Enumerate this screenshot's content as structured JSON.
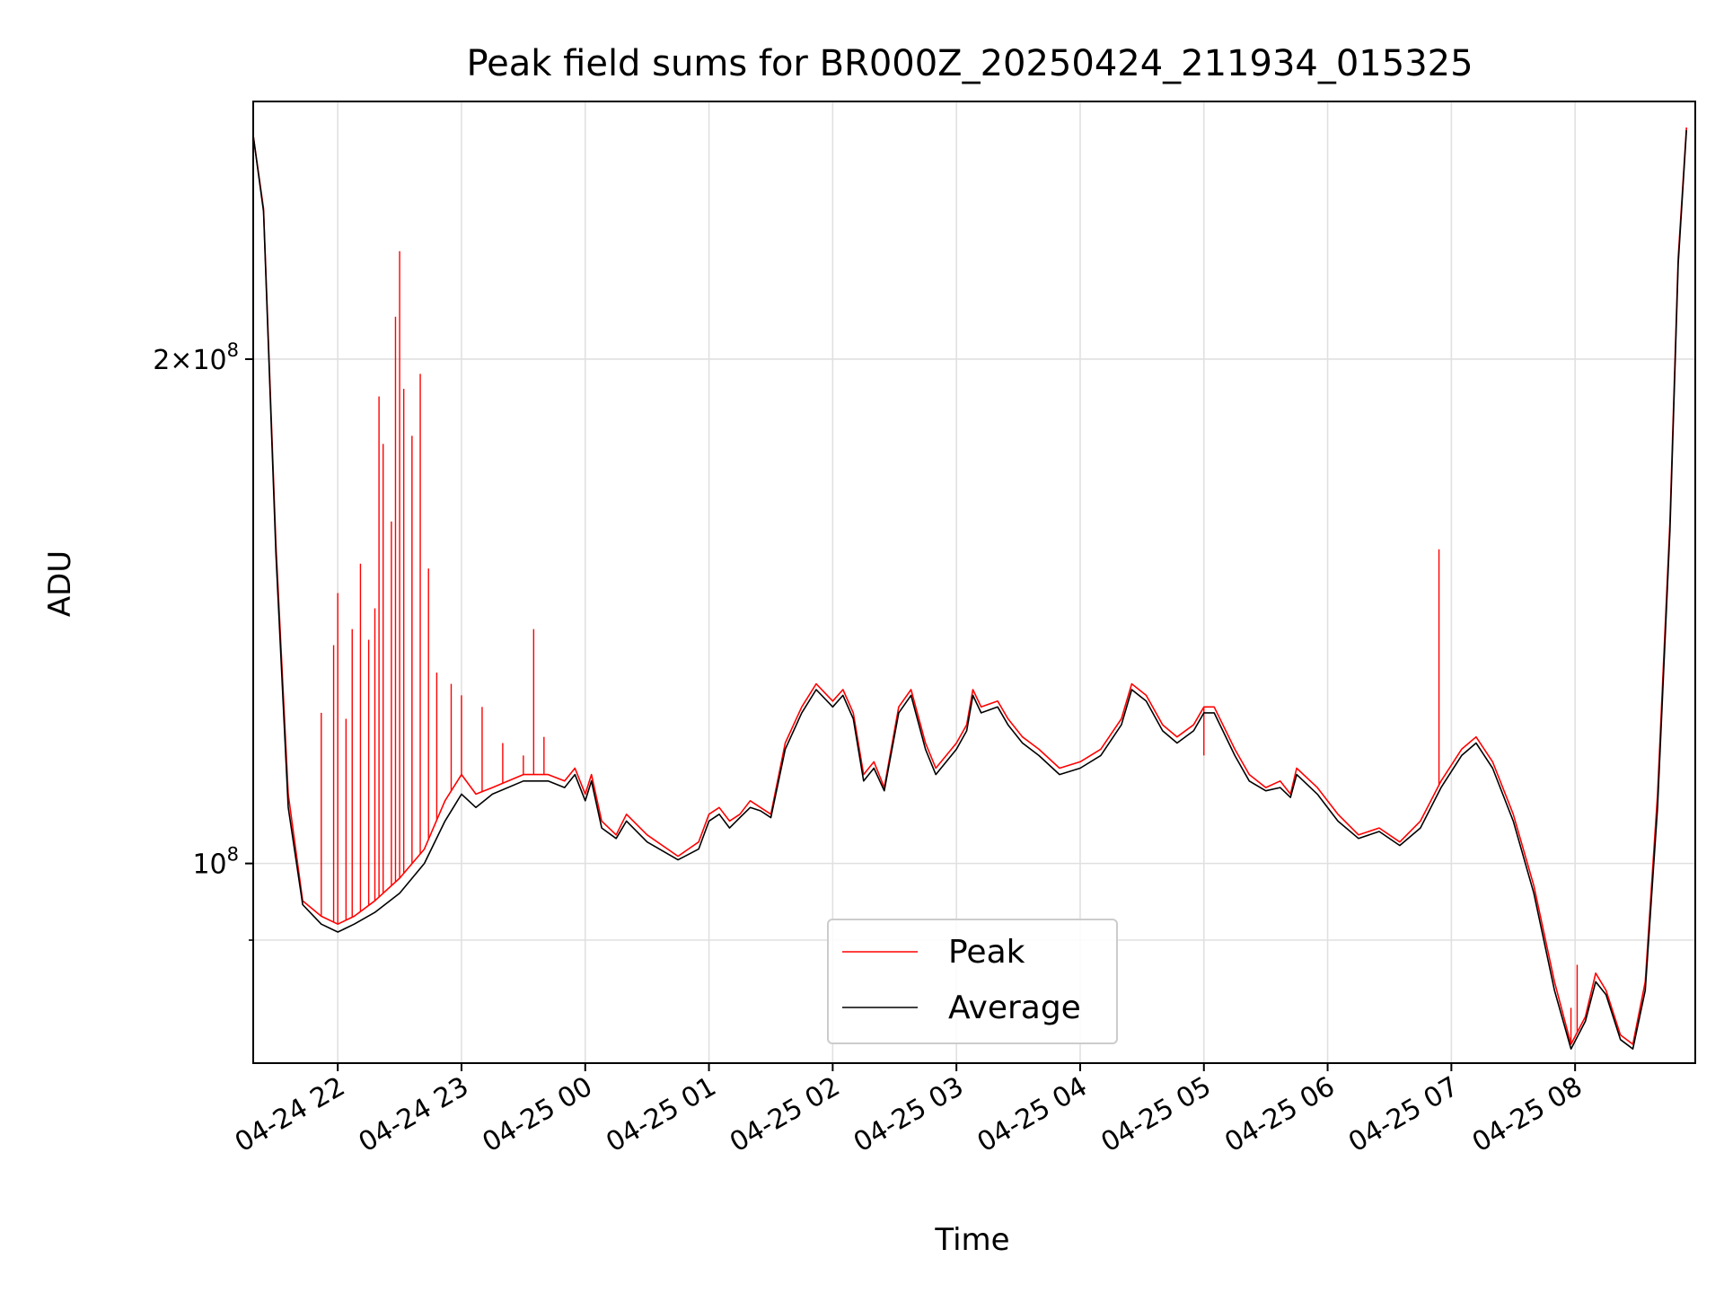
{
  "chart_data": {
    "type": "line",
    "title": "Peak field sums for BR000Z_20250424_211934_015325",
    "xlabel": "Time",
    "ylabel": "ADU",
    "yscale": "log",
    "ylim": [
      76000000,
      285000000
    ],
    "x_ticks": [
      "04-24 22",
      "04-24 23",
      "04-25 00",
      "04-25 01",
      "04-25 02",
      "04-25 03",
      "04-25 04",
      "04-25 05",
      "04-25 06",
      "04-25 07",
      "04-25 08"
    ],
    "y_tick_labels": [
      {
        "value": 100000000,
        "mantissa": "",
        "exponent": "8"
      },
      {
        "value": 200000000,
        "mantissa": "2×10",
        "exponent": "8"
      }
    ],
    "y_minor_ticks": [
      90000000
    ],
    "grid": true,
    "legend_position": "lower center",
    "series": [
      {
        "name": "Peak",
        "color": "#ff0000",
        "points": [
          [
            "04-24 21:19",
            272000000
          ],
          [
            "04-24 21:24",
            246000000
          ],
          [
            "04-24 21:30",
            155000000
          ],
          [
            "04-24 21:36",
            110000000
          ],
          [
            "04-24 21:43",
            95000000
          ],
          [
            "04-24 21:52",
            93000000
          ],
          [
            "04-24 22:00",
            92000000
          ],
          [
            "04-24 22:08",
            93000000
          ],
          [
            "04-24 22:18",
            95000000
          ],
          [
            "04-24 22:30",
            98000000
          ],
          [
            "04-24 22:42",
            102000000
          ],
          [
            "04-24 22:52",
            109000000
          ],
          [
            "04-24 23:00",
            113000000
          ],
          [
            "04-24 23:07",
            110000000
          ],
          [
            "04-24 23:15",
            111000000
          ],
          [
            "04-24 23:30",
            113000000
          ],
          [
            "04-24 23:42",
            113000000
          ],
          [
            "04-24 23:50",
            112000000
          ],
          [
            "04-24 23:55",
            114000000
          ],
          [
            "04-25 00:00",
            110000000
          ],
          [
            "04-25 00:03",
            113000000
          ],
          [
            "04-25 00:08",
            106000000
          ],
          [
            "04-25 00:15",
            104000000
          ],
          [
            "04-25 00:20",
            107000000
          ],
          [
            "04-25 00:30",
            104000000
          ],
          [
            "04-25 00:45",
            101000000
          ],
          [
            "04-25 00:55",
            103000000
          ],
          [
            "04-25 01:00",
            107000000
          ],
          [
            "04-25 01:05",
            108000000
          ],
          [
            "04-25 01:10",
            106000000
          ],
          [
            "04-25 01:15",
            107000000
          ],
          [
            "04-25 01:20",
            109000000
          ],
          [
            "04-25 01:25",
            108000000
          ],
          [
            "04-25 01:30",
            107000000
          ],
          [
            "04-25 01:37",
            118000000
          ],
          [
            "04-25 01:45",
            124000000
          ],
          [
            "04-25 01:52",
            128000000
          ],
          [
            "04-25 02:00",
            125000000
          ],
          [
            "04-25 02:05",
            127000000
          ],
          [
            "04-25 02:10",
            123000000
          ],
          [
            "04-25 02:15",
            113000000
          ],
          [
            "04-25 02:20",
            115000000
          ],
          [
            "04-25 02:25",
            111000000
          ],
          [
            "04-25 02:32",
            124000000
          ],
          [
            "04-25 02:38",
            127000000
          ],
          [
            "04-25 02:45",
            118000000
          ],
          [
            "04-25 02:50",
            114000000
          ],
          [
            "04-25 03:00",
            118000000
          ],
          [
            "04-25 03:05",
            121000000
          ],
          [
            "04-25 03:08",
            127000000
          ],
          [
            "04-25 03:12",
            124000000
          ],
          [
            "04-25 03:20",
            125000000
          ],
          [
            "04-25 03:25",
            122000000
          ],
          [
            "04-25 03:32",
            119000000
          ],
          [
            "04-25 03:40",
            117000000
          ],
          [
            "04-25 03:50",
            114000000
          ],
          [
            "04-25 04:00",
            115000000
          ],
          [
            "04-25 04:10",
            117000000
          ],
          [
            "04-25 04:20",
            122000000
          ],
          [
            "04-25 04:25",
            128000000
          ],
          [
            "04-25 04:32",
            126000000
          ],
          [
            "04-25 04:40",
            121000000
          ],
          [
            "04-25 04:47",
            119000000
          ],
          [
            "04-25 04:55",
            121000000
          ],
          [
            "04-25 05:00",
            124000000
          ],
          [
            "04-25 05:05",
            124000000
          ],
          [
            "04-25 05:15",
            117000000
          ],
          [
            "04-25 05:22",
            113000000
          ],
          [
            "04-25 05:30",
            111000000
          ],
          [
            "04-25 05:37",
            112000000
          ],
          [
            "04-25 05:42",
            110000000
          ],
          [
            "04-25 05:45",
            114000000
          ],
          [
            "04-25 05:55",
            111000000
          ],
          [
            "04-25 06:05",
            107000000
          ],
          [
            "04-25 06:15",
            104000000
          ],
          [
            "04-25 06:25",
            105000000
          ],
          [
            "04-25 06:35",
            103000000
          ],
          [
            "04-25 06:45",
            106000000
          ],
          [
            "04-25 06:55",
            112000000
          ],
          [
            "04-25 07:05",
            117000000
          ],
          [
            "04-25 07:12",
            119000000
          ],
          [
            "04-25 07:20",
            115000000
          ],
          [
            "04-25 07:30",
            107000000
          ],
          [
            "04-25 07:40",
            97000000
          ],
          [
            "04-25 07:50",
            85000000
          ],
          [
            "04-25 07:58",
            78000000
          ],
          [
            "04-25 08:05",
            81000000
          ],
          [
            "04-25 08:10",
            86000000
          ],
          [
            "04-25 08:15",
            84000000
          ],
          [
            "04-25 08:22",
            79000000
          ],
          [
            "04-25 08:28",
            78000000
          ],
          [
            "04-25 08:34",
            85000000
          ],
          [
            "04-25 08:40",
            110000000
          ],
          [
            "04-25 08:46",
            160000000
          ],
          [
            "04-25 08:50",
            230000000
          ],
          [
            "04-25 08:54",
            275000000
          ]
        ],
        "spikes": [
          [
            "04-24 21:52",
            123000000
          ],
          [
            "04-24 21:58",
            135000000
          ],
          [
            "04-24 22:00",
            145000000
          ],
          [
            "04-24 22:04",
            122000000
          ],
          [
            "04-24 22:07",
            138000000
          ],
          [
            "04-24 22:11",
            151000000
          ],
          [
            "04-24 22:15",
            136000000
          ],
          [
            "04-24 22:18",
            142000000
          ],
          [
            "04-24 22:20",
            190000000
          ],
          [
            "04-24 22:22",
            178000000
          ],
          [
            "04-24 22:26",
            160000000
          ],
          [
            "04-24 22:28",
            212000000
          ],
          [
            "04-24 22:30",
            232000000
          ],
          [
            "04-24 22:32",
            192000000
          ],
          [
            "04-24 22:36",
            180000000
          ],
          [
            "04-24 22:40",
            196000000
          ],
          [
            "04-24 22:44",
            150000000
          ],
          [
            "04-24 22:48",
            130000000
          ],
          [
            "04-24 22:55",
            128000000
          ],
          [
            "04-24 23:00",
            126000000
          ],
          [
            "04-24 23:10",
            124000000
          ],
          [
            "04-24 23:20",
            118000000
          ],
          [
            "04-24 23:30",
            116000000
          ],
          [
            "04-24 23:35",
            138000000
          ],
          [
            "04-24 23:40",
            119000000
          ],
          [
            "04-25 05:00",
            116000000
          ],
          [
            "04-25 06:54",
            154000000
          ],
          [
            "04-25 07:58",
            82000000
          ],
          [
            "04-25 08:01",
            87000000
          ]
        ]
      },
      {
        "name": "Average",
        "color": "#000000",
        "points": [
          [
            "04-24 21:19",
            272000000
          ],
          [
            "04-24 21:24",
            245000000
          ],
          [
            "04-24 21:30",
            153000000
          ],
          [
            "04-24 21:36",
            108000000
          ],
          [
            "04-24 21:43",
            94500000
          ],
          [
            "04-24 21:52",
            92000000
          ],
          [
            "04-24 22:00",
            91000000
          ],
          [
            "04-24 22:08",
            92000000
          ],
          [
            "04-24 22:18",
            93500000
          ],
          [
            "04-24 22:30",
            96000000
          ],
          [
            "04-24 22:42",
            100000000
          ],
          [
            "04-24 22:52",
            106000000
          ],
          [
            "04-24 23:00",
            110000000
          ],
          [
            "04-24 23:07",
            108000000
          ],
          [
            "04-24 23:15",
            110000000
          ],
          [
            "04-24 23:30",
            112000000
          ],
          [
            "04-24 23:42",
            112000000
          ],
          [
            "04-24 23:50",
            111000000
          ],
          [
            "04-24 23:55",
            113000000
          ],
          [
            "04-25 00:00",
            109000000
          ],
          [
            "04-25 00:03",
            112000000
          ],
          [
            "04-25 00:08",
            105000000
          ],
          [
            "04-25 00:15",
            103500000
          ],
          [
            "04-25 00:20",
            106000000
          ],
          [
            "04-25 00:30",
            103000000
          ],
          [
            "04-25 00:45",
            100500000
          ],
          [
            "04-25 00:55",
            102000000
          ],
          [
            "04-25 01:00",
            106000000
          ],
          [
            "04-25 01:05",
            107000000
          ],
          [
            "04-25 01:10",
            105000000
          ],
          [
            "04-25 01:15",
            106500000
          ],
          [
            "04-25 01:20",
            108000000
          ],
          [
            "04-25 01:25",
            107500000
          ],
          [
            "04-25 01:30",
            106500000
          ],
          [
            "04-25 01:37",
            117000000
          ],
          [
            "04-25 01:45",
            123000000
          ],
          [
            "04-25 01:52",
            127000000
          ],
          [
            "04-25 02:00",
            124000000
          ],
          [
            "04-25 02:05",
            126000000
          ],
          [
            "04-25 02:10",
            122000000
          ],
          [
            "04-25 02:15",
            112000000
          ],
          [
            "04-25 02:20",
            114000000
          ],
          [
            "04-25 02:25",
            110500000
          ],
          [
            "04-25 02:32",
            123000000
          ],
          [
            "04-25 02:38",
            126000000
          ],
          [
            "04-25 02:45",
            117000000
          ],
          [
            "04-25 02:50",
            113000000
          ],
          [
            "04-25 03:00",
            117000000
          ],
          [
            "04-25 03:05",
            120000000
          ],
          [
            "04-25 03:08",
            126000000
          ],
          [
            "04-25 03:12",
            123000000
          ],
          [
            "04-25 03:20",
            124000000
          ],
          [
            "04-25 03:25",
            121000000
          ],
          [
            "04-25 03:32",
            118000000
          ],
          [
            "04-25 03:40",
            116000000
          ],
          [
            "04-25 03:50",
            113000000
          ],
          [
            "04-25 04:00",
            114000000
          ],
          [
            "04-25 04:10",
            116000000
          ],
          [
            "04-25 04:20",
            121000000
          ],
          [
            "04-25 04:25",
            127000000
          ],
          [
            "04-25 04:32",
            125000000
          ],
          [
            "04-25 04:40",
            120000000
          ],
          [
            "04-25 04:47",
            118000000
          ],
          [
            "04-25 04:55",
            120000000
          ],
          [
            "04-25 05:00",
            123000000
          ],
          [
            "04-25 05:05",
            123000000
          ],
          [
            "04-25 05:15",
            116000000
          ],
          [
            "04-25 05:22",
            112000000
          ],
          [
            "04-25 05:30",
            110500000
          ],
          [
            "04-25 05:37",
            111000000
          ],
          [
            "04-25 05:42",
            109500000
          ],
          [
            "04-25 05:45",
            113000000
          ],
          [
            "04-25 05:55",
            110000000
          ],
          [
            "04-25 06:05",
            106000000
          ],
          [
            "04-25 06:15",
            103500000
          ],
          [
            "04-25 06:25",
            104500000
          ],
          [
            "04-25 06:35",
            102500000
          ],
          [
            "04-25 06:45",
            105000000
          ],
          [
            "04-25 06:55",
            111000000
          ],
          [
            "04-25 07:05",
            116000000
          ],
          [
            "04-25 07:12",
            118000000
          ],
          [
            "04-25 07:20",
            114000000
          ],
          [
            "04-25 07:30",
            106000000
          ],
          [
            "04-25 07:40",
            96000000
          ],
          [
            "04-25 07:50",
            84000000
          ],
          [
            "04-25 07:58",
            77500000
          ],
          [
            "04-25 08:05",
            80500000
          ],
          [
            "04-25 08:10",
            85000000
          ],
          [
            "04-25 08:15",
            83500000
          ],
          [
            "04-25 08:22",
            78500000
          ],
          [
            "04-25 08:28",
            77500000
          ],
          [
            "04-25 08:34",
            84000000
          ],
          [
            "04-25 08:40",
            108000000
          ],
          [
            "04-25 08:46",
            158000000
          ],
          [
            "04-25 08:50",
            228000000
          ],
          [
            "04-25 08:54",
            274000000
          ]
        ]
      }
    ]
  }
}
